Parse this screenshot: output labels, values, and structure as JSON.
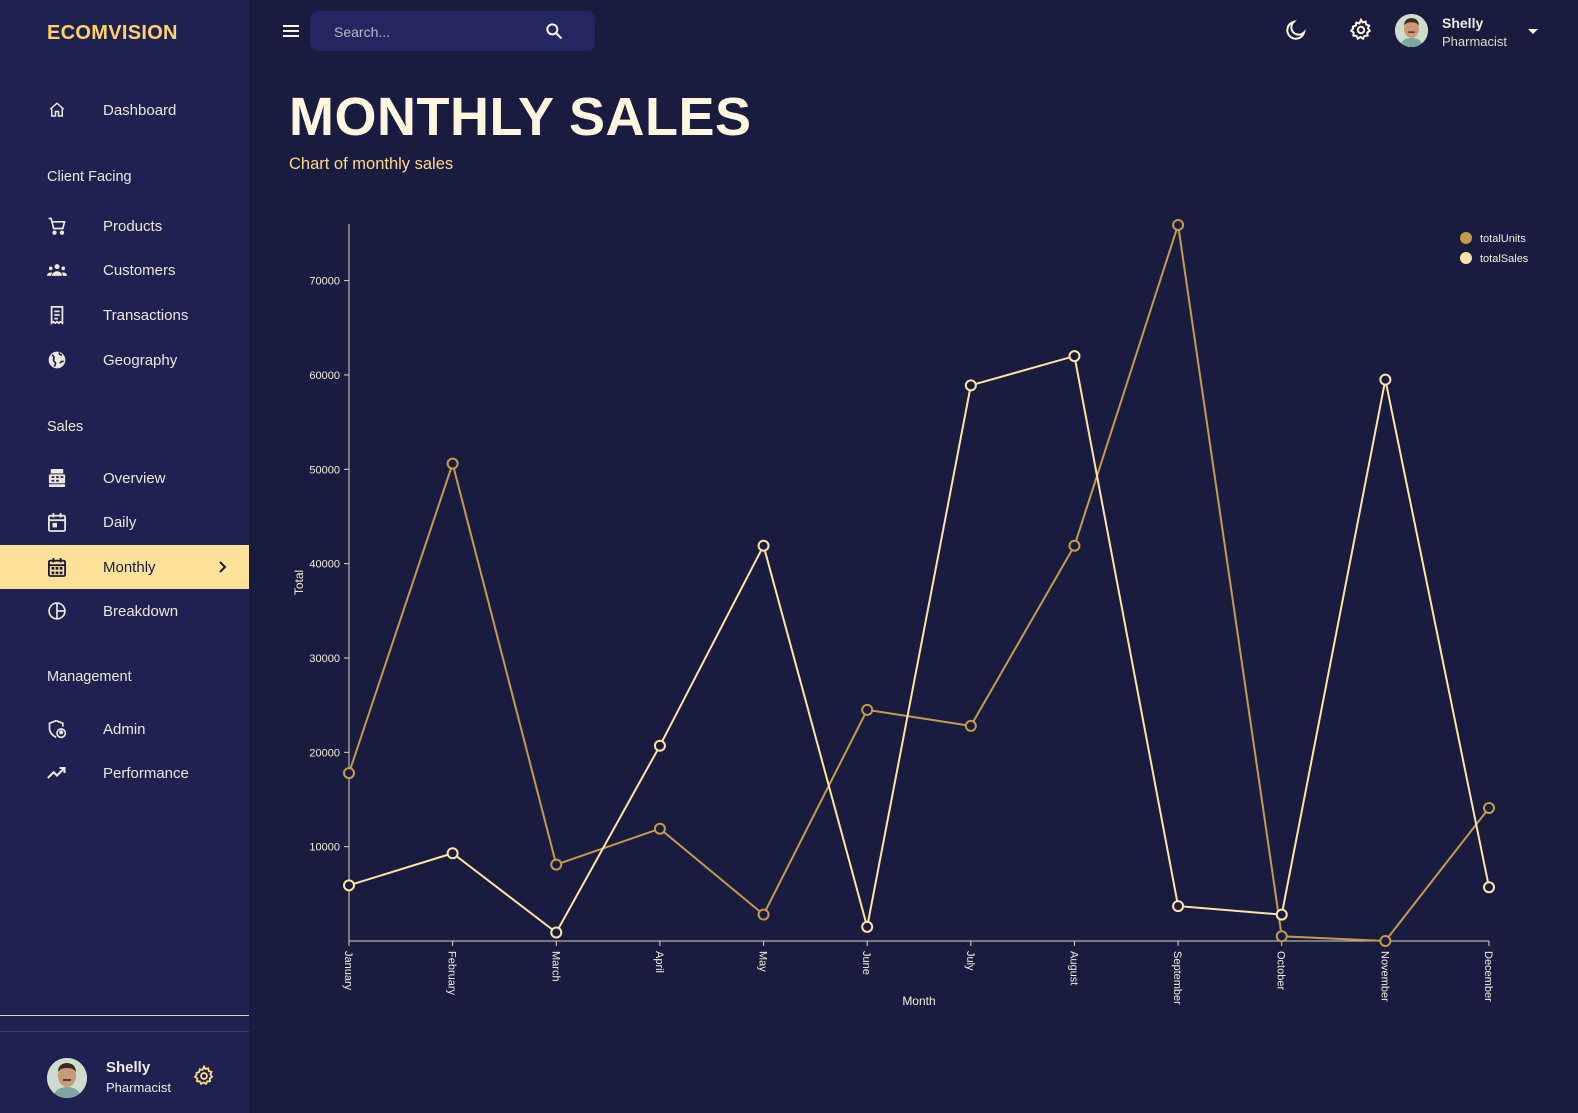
{
  "brand": "ECOMVISION",
  "search": {
    "placeholder": "Search..."
  },
  "user": {
    "name": "Shelly",
    "role": "Pharmacist"
  },
  "nav": {
    "dashboard": "Dashboard",
    "section_client": "Client Facing",
    "products": "Products",
    "customers": "Customers",
    "transactions": "Transactions",
    "geography": "Geography",
    "section_sales": "Sales",
    "overview": "Overview",
    "daily": "Daily",
    "monthly": "Monthly",
    "breakdown": "Breakdown",
    "section_management": "Management",
    "admin": "Admin",
    "performance": "Performance"
  },
  "header": {
    "title": "MONTHLY SALES",
    "subtitle": "Chart of monthly sales"
  },
  "colors": {
    "background": "#1a1c3f",
    "sidebar": "#1f2250",
    "accent": "#ffd166",
    "active_nav": "#ffe29a",
    "totalUnits": "#c49a4d",
    "totalSales": "#ffe4a3"
  },
  "icons": {
    "menu": "menu-icon",
    "search": "search-icon",
    "theme": "moon-icon",
    "settings": "gear-icon",
    "caret": "caret-down-icon"
  },
  "chart_data": {
    "type": "line",
    "xlabel": "Month",
    "ylabel": "Total",
    "ylim": [
      0,
      76000
    ],
    "yticks": [
      10000,
      20000,
      30000,
      40000,
      50000,
      60000,
      70000
    ],
    "categories": [
      "January",
      "February",
      "March",
      "April",
      "May",
      "June",
      "July",
      "August",
      "September",
      "October",
      "November",
      "December"
    ],
    "legend_position": "top-right",
    "series": [
      {
        "name": "totalUnits",
        "color": "#c49a4d",
        "values": [
          17800,
          50600,
          8100,
          11900,
          2800,
          24500,
          22800,
          41900,
          75900,
          500,
          0,
          14100
        ]
      },
      {
        "name": "totalSales",
        "color": "#ffe4a3",
        "values": [
          5900,
          9300,
          900,
          20700,
          41900,
          1500,
          58900,
          62000,
          3700,
          2800,
          59500,
          5700
        ]
      }
    ]
  }
}
